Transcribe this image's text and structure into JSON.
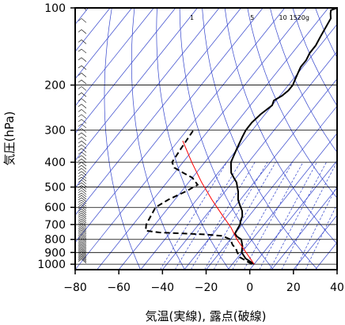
{
  "chart_data": {
    "type": "line",
    "title": "",
    "xlabel": "気温(実線), 露点(破線)",
    "ylabel": "気圧(hPa)",
    "xlim": [
      -80,
      40
    ],
    "ylim": [
      1050,
      100
    ],
    "y_scale": "log",
    "x_ticks": [
      -80,
      -60,
      -40,
      -20,
      0,
      20,
      40
    ],
    "x_tick_labels": [
      "−80",
      "−60",
      "−40",
      "−20",
      "0",
      "20",
      "40"
    ],
    "y_ticks": [
      100,
      200,
      300,
      400,
      500,
      600,
      700,
      800,
      900,
      1000
    ],
    "y_tick_labels": [
      "100",
      "200",
      "300",
      "400",
      "500",
      "600",
      "700",
      "800",
      "900",
      "1000"
    ],
    "mixing_ratio_labels": [
      "1",
      "5",
      "10",
      "15",
      "20g"
    ],
    "mixing_ratios_gkg": [
      0.1,
      0.2,
      0.4,
      0.7,
      1,
      2,
      3,
      5,
      7,
      10,
      15,
      20
    ],
    "dry_adiabats_K": [
      220,
      240,
      260,
      280,
      300,
      320,
      340,
      360,
      380,
      400,
      420,
      440,
      460,
      480,
      500,
      520,
      540,
      560,
      580,
      600,
      640,
      680,
      720,
      760,
      800
    ],
    "colors": {
      "temperature": "#000000",
      "dewpoint": "#000000",
      "parcel": "#ff0000",
      "guides": "#3344cc",
      "grid": "#000000"
    },
    "series": [
      {
        "style": "solid",
        "x": [
          0,
          -6,
          -10,
          -12,
          -15,
          -18,
          -20,
          -21,
          -22,
          -23,
          -25,
          -28,
          -31,
          -34,
          -36,
          -38,
          -41,
          -44,
          -46,
          -48,
          -49,
          -50,
          -51,
          -52,
          -53,
          -53,
          -52,
          -50,
          -51,
          -49,
          -48,
          -48,
          -49,
          -50,
          -51,
          -51,
          -52,
          -52,
          -53,
          -54,
          -55,
          -57,
          -58,
          -56
        ],
        "y": [
          1000,
          950,
          900,
          850,
          800,
          780,
          760,
          700,
          680,
          650,
          620,
          590,
          560,
          520,
          500,
          480,
          460,
          440,
          420,
          400,
          380,
          360,
          340,
          320,
          300,
          280,
          260,
          240,
          230,
          220,
          210,
          200,
          190,
          180,
          170,
          160,
          150,
          140,
          130,
          120,
          110,
          105,
          102,
          100
        ]
      },
      {
        "style": "dashed",
        "x": [
          -1,
          -5,
          -9,
          -12,
          -14,
          -17,
          -20,
          -25,
          -34,
          -45,
          -55,
          -62,
          -64,
          -65,
          -66,
          -63,
          -58,
          -55,
          -60,
          -66,
          -72,
          -75,
          -76,
          -77
        ],
        "y": [
          1000,
          970,
          940,
          900,
          870,
          840,
          800,
          775,
          765,
          758,
          752,
          740,
          700,
          650,
          600,
          560,
          520,
          490,
          460,
          440,
          420,
          400,
          350,
          300
        ]
      },
      {
        "style": "parcel",
        "x": [
          0,
          -8,
          -17,
          -24,
          -33,
          -43,
          -54,
          -66,
          -78
        ],
        "y": [
          1000,
          900,
          800,
          720,
          640,
          560,
          480,
          400,
          330
        ]
      }
    ]
  }
}
